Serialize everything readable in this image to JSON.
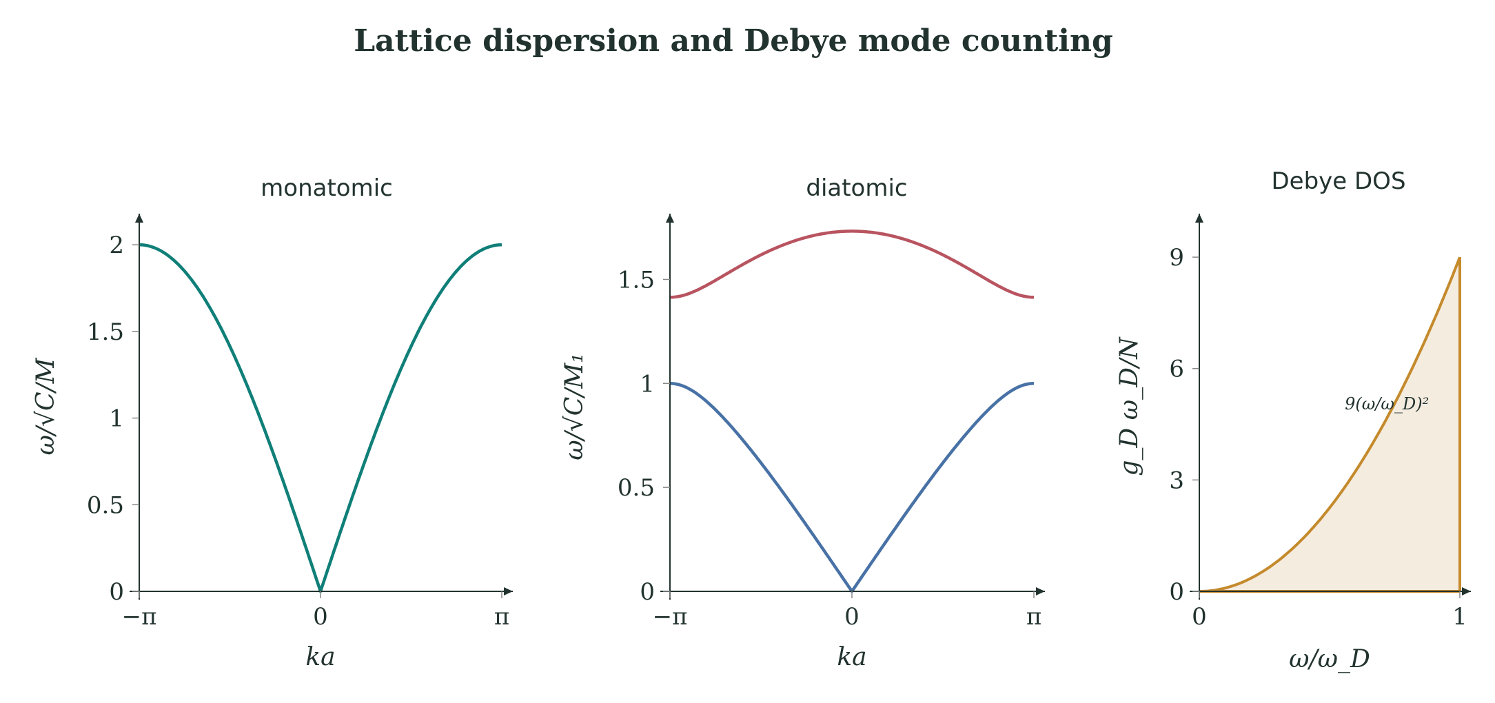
{
  "figure": {
    "title": "Lattice dispersion and Debye mode counting"
  },
  "chart_data": [
    {
      "type": "line",
      "title": "monatomic",
      "xlabel": "ka",
      "ylabel": "ω/√C/M",
      "xlim": [
        -3.14159,
        3.14159
      ],
      "ylim": [
        0,
        2.1
      ],
      "x_ticks": [
        {
          "value": -3.14159,
          "label": "−π"
        },
        {
          "value": 0,
          "label": "0"
        },
        {
          "value": 3.14159,
          "label": "π"
        }
      ],
      "y_ticks": [
        {
          "value": 0,
          "label": "0"
        },
        {
          "value": 0.5,
          "label": "0.5"
        },
        {
          "value": 1,
          "label": "1"
        },
        {
          "value": 1.5,
          "label": "1.5"
        },
        {
          "value": 2,
          "label": "2"
        }
      ],
      "grid": false,
      "series": [
        {
          "color": "#0f7f78",
          "x": [
            -3.14159,
            -2.74889,
            -2.35619,
            -1.9635,
            -1.5708,
            -1.1781,
            -0.7854,
            -0.3927,
            0,
            0.3927,
            0.7854,
            1.1781,
            1.5708,
            1.9635,
            2.35619,
            2.74889,
            3.14159
          ],
          "y": [
            2.0,
            1.9616,
            1.8478,
            1.6629,
            1.4142,
            1.1111,
            0.7654,
            0.3902,
            0.0,
            0.3902,
            0.7654,
            1.1111,
            1.4142,
            1.6629,
            1.8478,
            1.9616,
            2.0
          ]
        }
      ]
    },
    {
      "type": "line",
      "title": "diatomic",
      "xlabel": "ka",
      "ylabel": "ω/√C/M₁",
      "xlim": [
        -3.14159,
        3.14159
      ],
      "ylim": [
        0,
        1.75
      ],
      "x_ticks": [
        {
          "value": -3.14159,
          "label": "−π"
        },
        {
          "value": 0,
          "label": "0"
        },
        {
          "value": 3.14159,
          "label": "π"
        }
      ],
      "y_ticks": [
        {
          "value": 0,
          "label": "0"
        },
        {
          "value": 0.5,
          "label": "0.5"
        },
        {
          "value": 1,
          "label": "1"
        },
        {
          "value": 1.5,
          "label": "1.5"
        }
      ],
      "grid": false,
      "series": [
        {
          "color": "#b85460",
          "x": [
            -3.14159,
            -2.74889,
            -2.35619,
            -1.9635,
            -1.5708,
            -1.1781,
            -0.7854,
            -0.3927,
            0,
            0.3927,
            0.7854,
            1.1781,
            1.5708,
            1.9635,
            2.35619,
            2.74889,
            3.14159
          ],
          "y": [
            1.4142,
            1.4209,
            1.4396,
            1.4676,
            1.5,
            1.5345,
            1.5746,
            1.6187,
            1.633,
            1.6187,
            1.5746,
            1.5345,
            1.5,
            1.4676,
            1.4396,
            1.4209,
            1.4142
          ]
        },
        {
          "color": "#4872a6",
          "x": [
            -3.14159,
            -2.74889,
            -2.35619,
            -1.9635,
            -1.5708,
            -1.1781,
            -0.7854,
            -0.3927,
            0,
            0.3927,
            0.7854,
            1.1781,
            1.5708,
            1.9635,
            2.35619,
            2.74889,
            3.14159
          ],
          "y": [
            0.8165,
            0.805,
            0.77,
            0.71,
            0.63,
            0.535,
            0.425,
            0.215,
            0.0,
            0.215,
            0.425,
            0.535,
            0.63,
            0.71,
            0.77,
            0.805,
            0.8165
          ]
        }
      ]
    },
    {
      "type": "area",
      "title": "Debye DOS",
      "xlabel": "ω/ω_D",
      "ylabel": "g_D ω_D/N",
      "xlim": [
        0,
        1
      ],
      "ylim": [
        0,
        9.8
      ],
      "x_ticks": [
        {
          "value": 0,
          "label": "0"
        },
        {
          "value": 1,
          "label": "1"
        }
      ],
      "y_ticks": [
        {
          "value": 0,
          "label": "0"
        },
        {
          "value": 3,
          "label": "3"
        },
        {
          "value": 6,
          "label": "6"
        },
        {
          "value": 9,
          "label": "9"
        }
      ],
      "grid": false,
      "annotation": {
        "text": "9(ω/ω_D)²",
        "x": 0.72,
        "y": 4.9
      },
      "series": [
        {
          "color": "#c48a2c",
          "fill": "#f5ece0",
          "x": [
            0,
            0.1,
            0.2,
            0.3,
            0.4,
            0.5,
            0.6,
            0.7,
            0.8,
            0.9,
            1.0
          ],
          "y": [
            0,
            0.09,
            0.36,
            0.81,
            1.44,
            2.25,
            3.24,
            4.41,
            5.76,
            7.29,
            9.0
          ]
        }
      ]
    }
  ]
}
